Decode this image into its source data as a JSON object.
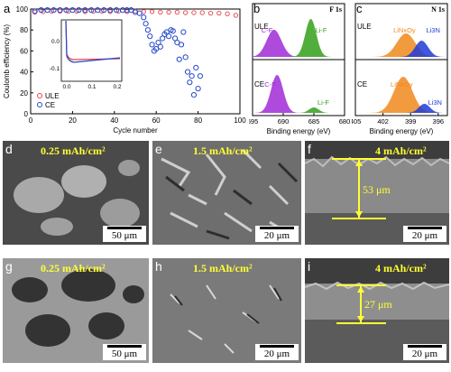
{
  "panels": {
    "a": {
      "letter": "a",
      "ylabel": "Coulomb efficiency (%)",
      "xlabel": "Cycle number",
      "xticks": [
        "0",
        "20",
        "40",
        "60",
        "80",
        "100"
      ],
      "yticks": [
        "0",
        "20",
        "40",
        "60",
        "80",
        "100"
      ],
      "inset_xticks": [
        "0.0",
        "0.1",
        "0.2"
      ],
      "inset_yticks": [
        "0.0",
        "-0.1"
      ],
      "legend": [
        "ULE",
        "CE"
      ]
    },
    "b": {
      "letter": "b",
      "title": "F 1s",
      "xlabel": "Binding energy (eV)",
      "xticks": [
        "695",
        "690",
        "685",
        "680"
      ],
      "top_sample": "ULE",
      "bottom_sample": "CE",
      "peak1": "C-F",
      "peak2": "Li-F"
    },
    "c": {
      "letter": "c",
      "title": "N 1s",
      "xlabel": "Binding energy (eV)",
      "xticks": [
        "405",
        "402",
        "399",
        "396"
      ],
      "top_sample": "ULE",
      "bottom_sample": "CE",
      "peak1": "LiNxOy",
      "peak2": "Li3N"
    },
    "sem": [
      {
        "letter": "d",
        "caption": "0.25 mAh/cm²",
        "scale": "50 μm"
      },
      {
        "letter": "e",
        "caption": "1.5 mAh/cm²",
        "scale": "20 μm"
      },
      {
        "letter": "f",
        "caption": "4 mAh/cm²",
        "scale": "20 μm",
        "thickness": "53 μm"
      },
      {
        "letter": "g",
        "caption": "0.25 mAh/cm²",
        "scale": "50 μm"
      },
      {
        "letter": "h",
        "caption": "1.5 mAh/cm²",
        "scale": "20 μm"
      },
      {
        "letter": "i",
        "caption": "4 mAh/cm²",
        "scale": "20 μm",
        "thickness": "27 μm"
      }
    ]
  },
  "colors": {
    "ule": "#e8414b",
    "ce": "#2447c9",
    "purple": "#a02ad6",
    "green": "#34a01a",
    "orange": "#f08a1c",
    "blue": "#1f3bd6",
    "yellow": "#ffff33"
  },
  "chart_data": [
    {
      "type": "scatter",
      "xlabel": "Cycle number",
      "ylabel": "Coulomb efficiency (%)",
      "xlim": [
        0,
        100
      ],
      "ylim": [
        0,
        100
      ],
      "series": [
        {
          "name": "ULE",
          "x": [
            2,
            6,
            10,
            14,
            18,
            22,
            26,
            30,
            34,
            38,
            42,
            46,
            50,
            54,
            58,
            62,
            66,
            70,
            74,
            78,
            82,
            86,
            90,
            94,
            98
          ],
          "y": [
            97,
            97.5,
            98,
            98,
            98,
            98,
            97.5,
            98,
            98,
            97.5,
            98,
            97.5,
            98,
            97.5,
            97.5,
            97,
            97,
            97,
            96.5,
            96.5,
            96.5,
            96,
            96,
            95.5,
            94
          ]
        },
        {
          "name": "CE",
          "x": [
            2,
            5,
            8,
            11,
            14,
            17,
            20,
            23,
            26,
            29,
            32,
            35,
            38,
            41,
            44,
            46,
            48,
            50,
            52,
            54,
            55,
            56,
            57,
            58,
            59,
            60,
            61,
            62,
            63,
            64,
            65,
            66,
            67,
            68,
            69,
            70,
            71,
            72,
            73,
            74,
            75,
            76,
            77,
            78,
            79,
            80,
            81
          ],
          "y": [
            98,
            99,
            99,
            99,
            99,
            99,
            99,
            99,
            99,
            99,
            99,
            99,
            99,
            99,
            99,
            99,
            99,
            97,
            96,
            92,
            86,
            80,
            74,
            66,
            60,
            62,
            68,
            64,
            72,
            76,
            78,
            74,
            80,
            79,
            72,
            68,
            52,
            66,
            78,
            54,
            40,
            30,
            36,
            18,
            44,
            24,
            36
          ]
        }
      ]
    },
    {
      "type": "line",
      "title": "F 1s",
      "xlabel": "Binding energy (eV)",
      "xlim": [
        695,
        680
      ],
      "series": [
        {
          "name": "C-F (ULE)",
          "peak": 691.5
        },
        {
          "name": "Li-F (ULE)",
          "peak": 685.5
        },
        {
          "name": "C-F (CE)",
          "peak": 691.0
        },
        {
          "name": "Li-F (CE)",
          "peak": 685.0
        }
      ]
    },
    {
      "type": "line",
      "title": "N 1s",
      "xlabel": "Binding energy (eV)",
      "xlim": [
        405,
        395
      ],
      "series": [
        {
          "name": "LiNxOy (ULE)",
          "peak": 399.5
        },
        {
          "name": "Li3N (ULE)",
          "peak": 397.8
        },
        {
          "name": "LiNxOy (CE)",
          "peak": 399.8
        },
        {
          "name": "Li3N (CE)",
          "peak": 397.5
        }
      ]
    }
  ]
}
